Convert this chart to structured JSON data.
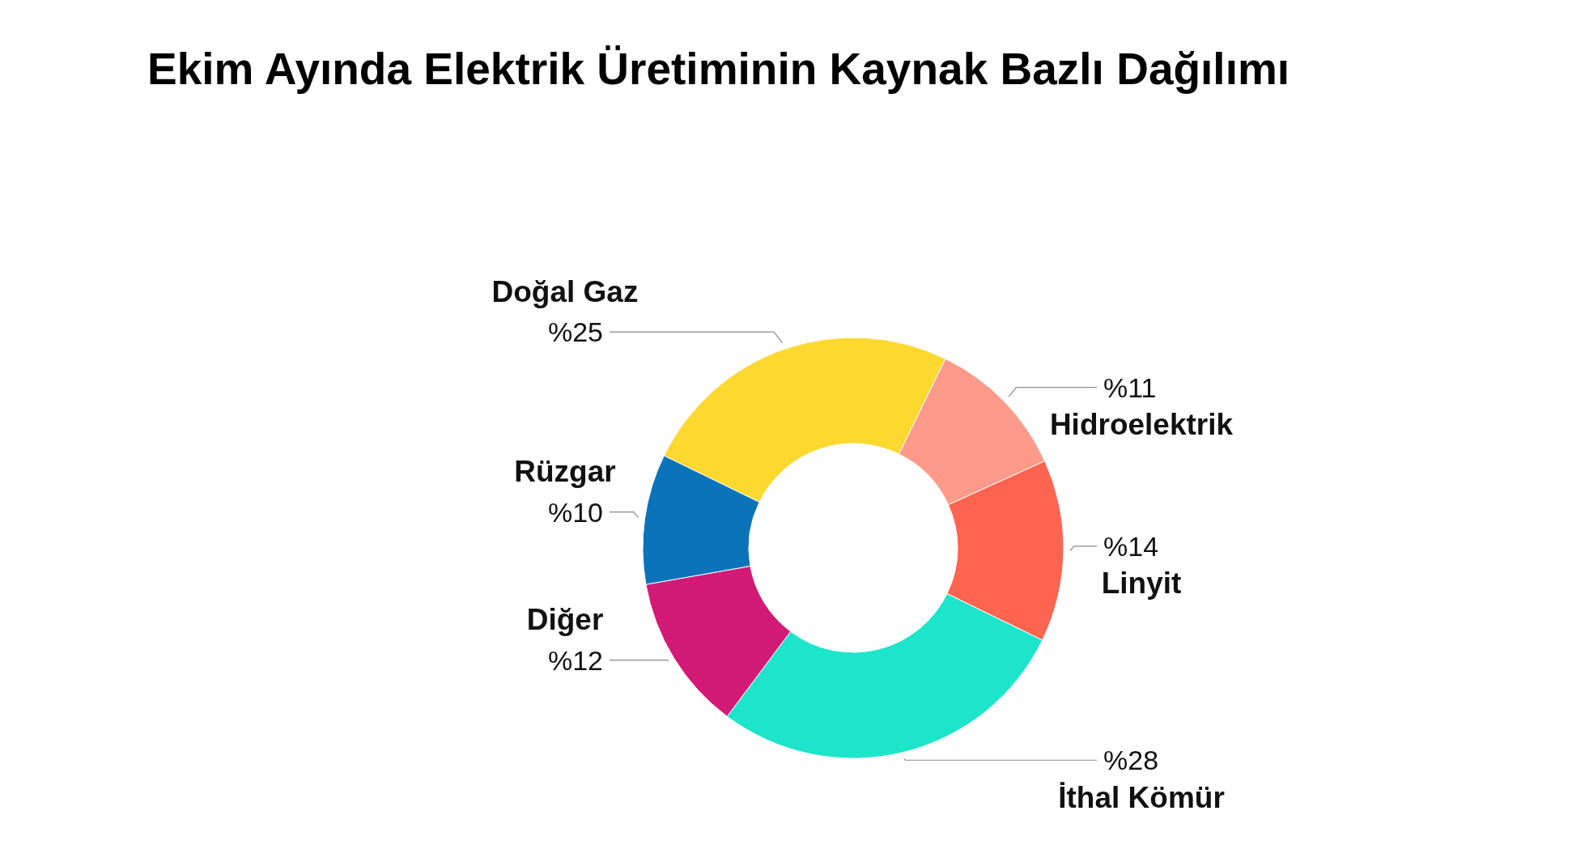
{
  "chart_data": {
    "type": "donut",
    "title": "Ekim Ayında Elektrik Üretiminin Kaynak Bazlı Dağılımı",
    "categories": [
      "Doğal Gaz",
      "Hidroelektrik",
      "Linyit",
      "İthal Kömür",
      "Diğer",
      "Rüzgar"
    ],
    "values": [
      25,
      11,
      14,
      28,
      12,
      10
    ],
    "value_labels": [
      "%25",
      "%11",
      "%14",
      "%28",
      "%12",
      "%10"
    ],
    "colors": [
      "#fdd82f",
      "#fd9a8a",
      "#fe6450",
      "#1de5cc",
      "#d21a76",
      "#0b73ba"
    ]
  }
}
